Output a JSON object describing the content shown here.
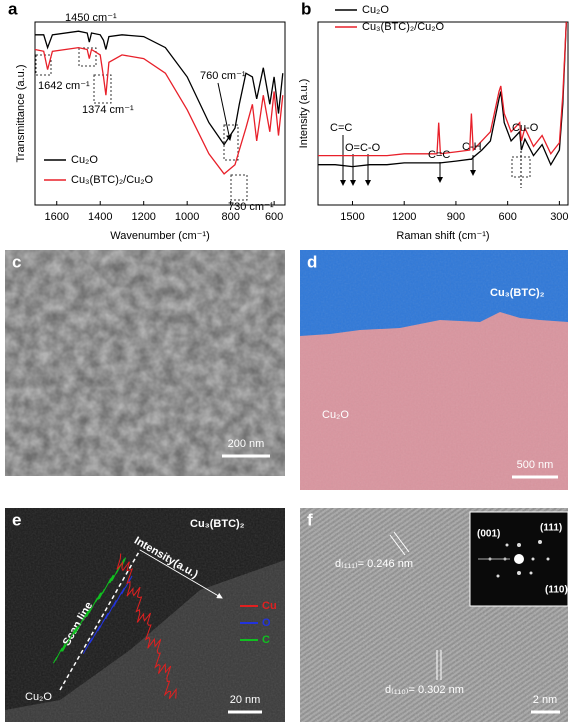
{
  "chart_data": [
    {
      "type": "line",
      "label": "a",
      "xlabel": "Wavenumber (cm⁻¹)",
      "ylabel": "Transmittance (a.u.)",
      "xlim": [
        1700,
        550
      ],
      "ylim": [
        0,
        1
      ],
      "xticks": [
        1600,
        1400,
        1200,
        1000,
        800,
        600
      ],
      "x": [
        1700,
        1660,
        1642,
        1620,
        1500,
        1460,
        1450,
        1440,
        1400,
        1385,
        1374,
        1360,
        1300,
        1200,
        1100,
        1000,
        900,
        830,
        780,
        760,
        730,
        700,
        680,
        650,
        620,
        600,
        580,
        560
      ],
      "series": [
        {
          "name": "Cu₂O",
          "color": "#000000",
          "values": [
            0.93,
            0.93,
            0.86,
            0.93,
            0.95,
            0.94,
            0.89,
            0.94,
            0.93,
            0.9,
            0.85,
            0.92,
            0.93,
            0.92,
            0.86,
            0.7,
            0.45,
            0.33,
            0.42,
            0.55,
            0.72,
            0.7,
            0.58,
            0.75,
            0.55,
            0.7,
            0.5,
            0.72
          ]
        },
        {
          "name": "Cu₃(BTC)₂/Cu₂O",
          "color": "#e8202a",
          "values": [
            0.85,
            0.84,
            0.74,
            0.84,
            0.86,
            0.85,
            0.8,
            0.85,
            0.82,
            0.7,
            0.6,
            0.78,
            0.82,
            0.8,
            0.72,
            0.52,
            0.28,
            0.17,
            0.22,
            0.3,
            0.42,
            0.55,
            0.35,
            0.6,
            0.4,
            0.62,
            0.38,
            0.6
          ]
        }
      ],
      "annotations": [
        "1450 cm⁻¹",
        "1642 cm⁻¹",
        "1374 cm⁻¹",
        "760 cm⁻¹",
        "730 cm⁻¹"
      ]
    },
    {
      "type": "line",
      "label": "b",
      "xlabel": "Raman shift (cm⁻¹)",
      "ylabel": "Intensity (a.u.)",
      "xlim": [
        1700,
        250
      ],
      "ylim": [
        0,
        1
      ],
      "xticks": [
        1500,
        1200,
        900,
        600,
        300
      ],
      "x": [
        1700,
        1600,
        1500,
        1400,
        1300,
        1200,
        1100,
        1010,
        1000,
        990,
        900,
        820,
        810,
        800,
        750,
        700,
        650,
        640,
        620,
        580,
        530,
        520,
        500,
        450,
        400,
        350,
        300,
        280,
        260
      ],
      "series": [
        {
          "name": "Cu₂O",
          "color": "#000000",
          "values": [
            0.22,
            0.22,
            0.21,
            0.22,
            0.22,
            0.23,
            0.23,
            0.23,
            0.23,
            0.23,
            0.24,
            0.25,
            0.25,
            0.26,
            0.3,
            0.35,
            0.58,
            0.62,
            0.45,
            0.35,
            0.4,
            0.3,
            0.36,
            0.27,
            0.33,
            0.22,
            0.3,
            0.55,
            1.0
          ]
        },
        {
          "name": "Cu₃(BTC)₂/Cu₂O",
          "color": "#e8202a",
          "values": [
            0.27,
            0.27,
            0.27,
            0.27,
            0.27,
            0.28,
            0.28,
            0.28,
            0.45,
            0.28,
            0.29,
            0.3,
            0.5,
            0.3,
            0.35,
            0.4,
            0.62,
            0.65,
            0.5,
            0.4,
            0.45,
            0.35,
            0.42,
            0.32,
            0.38,
            0.28,
            0.34,
            0.6,
            1.0
          ]
        }
      ],
      "annotations": [
        "C=C",
        "O=C-O",
        "C=C",
        "C-H",
        "Cu-O"
      ]
    }
  ],
  "panels": {
    "c": {
      "label": "c",
      "scale": "200 nm"
    },
    "d": {
      "label": "d",
      "top": "Cu₃(BTC)₂",
      "bottom": "Cu₂O",
      "scale": "500 nm"
    },
    "e": {
      "label": "e",
      "top": "Cu₃(BTC)₂",
      "intensity": "Intensity(a.u.)",
      "scan": "Scan line",
      "legend": [
        "Cu",
        "O",
        "C"
      ],
      "bottom": "Cu₂O",
      "scale": "20 nm"
    },
    "f": {
      "label": "f",
      "d1": "d₍₁₁₁₎= 0.246 nm",
      "d2": "d₍₁₁₀₎= 0.302 nm",
      "spots": [
        "(001)",
        "(111)",
        "(110)"
      ],
      "scale": "2 nm"
    }
  }
}
